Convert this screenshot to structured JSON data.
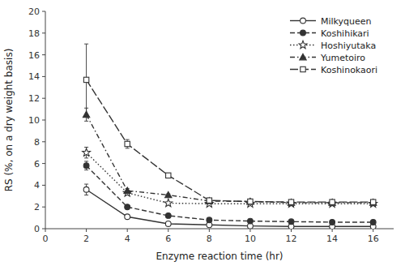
{
  "chart_data": {
    "type": "line",
    "x": [
      2,
      4,
      6,
      8,
      10,
      12,
      14,
      16
    ],
    "series": [
      {
        "name": "Milkyqueen",
        "color": "#333333",
        "marker": "open-circle",
        "line_style": "solid",
        "values": [
          3.6,
          1.1,
          0.45,
          0.35,
          0.25,
          0.2,
          0.2,
          0.2
        ],
        "errors": [
          0.5,
          0.15,
          0.08,
          0.0,
          0.0,
          0.0,
          0.0,
          0.0
        ]
      },
      {
        "name": "Koshihikari",
        "color": "#333333",
        "marker": "circle",
        "line_style": "dashed",
        "values": [
          5.8,
          2.0,
          1.2,
          0.8,
          0.7,
          0.65,
          0.6,
          0.6
        ],
        "errors": [
          0.4,
          0.15,
          0.1,
          0.05,
          0.0,
          0.0,
          0.0,
          0.0
        ]
      },
      {
        "name": "Hoshiyutaka",
        "color": "#333333",
        "marker": "open-star",
        "line_style": "dotted",
        "values": [
          7.0,
          3.3,
          2.35,
          2.3,
          2.3,
          2.3,
          2.3,
          2.3
        ],
        "errors": [
          0.5,
          0.2,
          0.1,
          0.05,
          0.0,
          0.0,
          0.0,
          0.0
        ]
      },
      {
        "name": "Yumetoiro",
        "color": "#333333",
        "marker": "triangle",
        "line_style": "dash-dot",
        "values": [
          10.5,
          3.5,
          3.1,
          2.55,
          2.5,
          2.4,
          2.4,
          2.4
        ],
        "errors": [
          0.6,
          0.2,
          0.1,
          0.05,
          0.0,
          0.0,
          0.0,
          0.0
        ]
      },
      {
        "name": "Koshinokaori",
        "color": "#333333",
        "marker": "open-square",
        "line_style": "long-dash",
        "values": [
          13.7,
          7.8,
          4.9,
          2.6,
          2.5,
          2.45,
          2.45,
          2.45
        ],
        "errors": [
          3.3,
          0.4,
          0.2,
          0.1,
          0.0,
          0.0,
          0.0,
          0.0
        ]
      }
    ],
    "xlabel": "Enzyme reaction time (hr)",
    "ylabel": "RS (%, on a dry weight basis)",
    "xlim": [
      0,
      17
    ],
    "ylim": [
      0,
      20
    ],
    "xticks": [
      0,
      2,
      4,
      6,
      8,
      10,
      12,
      14,
      16
    ],
    "yticks": [
      0,
      2,
      4,
      6,
      8,
      10,
      12,
      14,
      16,
      18,
      20
    ],
    "grid": false,
    "legend": "upper right"
  }
}
